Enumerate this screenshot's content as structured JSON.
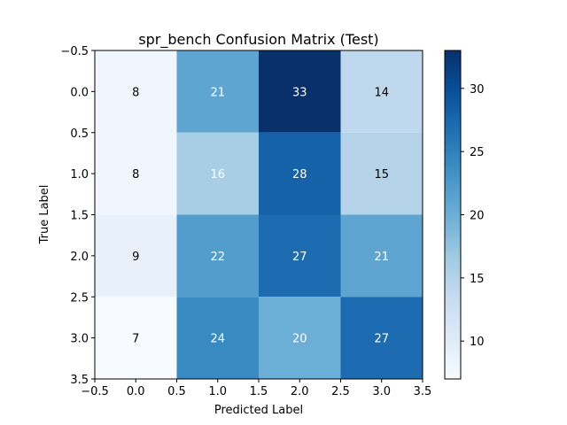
{
  "chart_data": {
    "type": "heatmap",
    "title": "spr_bench Confusion Matrix (Test)",
    "xlabel": "Predicted Label",
    "ylabel": "True Label",
    "x_ticks": [
      "-0.5",
      "0.0",
      "0.5",
      "1.0",
      "1.5",
      "2.0",
      "2.5",
      "3.0",
      "3.5"
    ],
    "y_ticks": [
      "-0.5",
      "0.0",
      "0.5",
      "1.0",
      "1.5",
      "2.0",
      "2.5",
      "3.0",
      "3.5"
    ],
    "xlim": [
      -0.5,
      3.5
    ],
    "ylim": [
      3.5,
      -0.5
    ],
    "matrix": [
      [
        8,
        21,
        33,
        14
      ],
      [
        8,
        16,
        28,
        15
      ],
      [
        9,
        22,
        27,
        21
      ],
      [
        7,
        24,
        20,
        27
      ]
    ],
    "colormap": "Blues",
    "colorbar": {
      "min": 7,
      "max": 33,
      "ticks": [
        "10",
        "15",
        "20",
        "25",
        "30"
      ]
    },
    "grid": false
  }
}
